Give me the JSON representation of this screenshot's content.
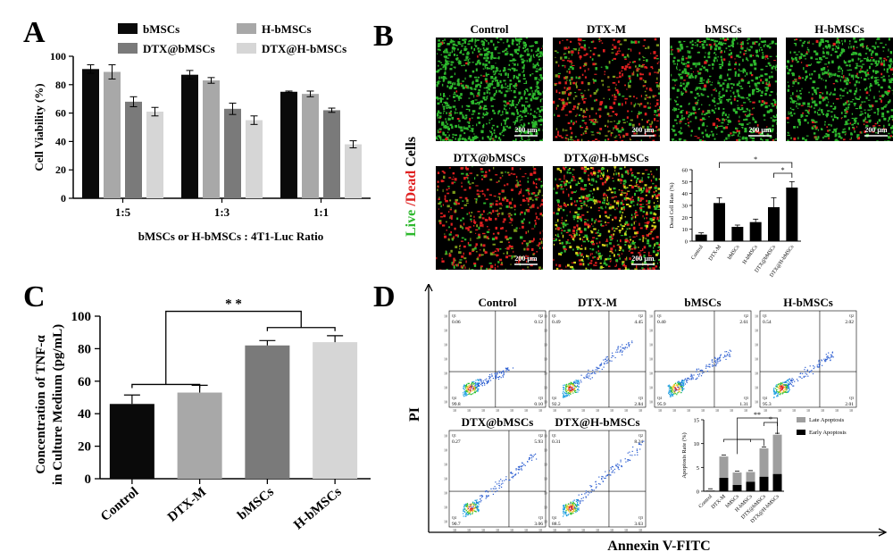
{
  "panel_letters": {
    "a": "A",
    "b": "B",
    "c": "C",
    "d": "D"
  },
  "colors": {
    "black": "#0a0a0a",
    "dgray": "#7a7a7a",
    "mgray": "#a8a8a8",
    "lgray": "#d6d6d6",
    "green": "#2db82d",
    "red": "#e02020",
    "late": "#9e9e9e",
    "early": "#000000"
  },
  "panelB": {
    "ylabel_live": "Live",
    "ylabel_slash": " /",
    "ylabel_dead": "Dead",
    "ylabel_cells": " Cells",
    "scale_bar": "200 μm",
    "images": [
      {
        "title": "Control",
        "scheme": "live"
      },
      {
        "title": "DTX-M",
        "scheme": "dead"
      },
      {
        "title": "bMSCs",
        "scheme": "mixed"
      },
      {
        "title": "H-bMSCs",
        "scheme": "mixed"
      },
      {
        "title": "DTX@bMSCs",
        "scheme": "dead"
      },
      {
        "title": "DTX@H-bMSCs",
        "scheme": "yellow"
      }
    ]
  },
  "panelD": {
    "ylabel": "PI",
    "xlabel": "Annexin V-FITC",
    "plots": [
      {
        "title": "Control",
        "q1": "0.06",
        "q2": "0.12",
        "q3": "0.10",
        "q4": "99.8",
        "spread": 0.1
      },
      {
        "title": "DTX-M",
        "q1": "0.49",
        "q2": "4.45",
        "q3": "2.84",
        "q4": "92.2",
        "spread": 0.7
      },
      {
        "title": "bMSCs",
        "q1": "0.40",
        "q2": "2.61",
        "q3": "1.31",
        "q4": "95.9",
        "spread": 0.5
      },
      {
        "title": "H-bMSCs",
        "q1": "0.54",
        "q2": "2.02",
        "q3": "2.01",
        "q4": "95.3",
        "spread": 0.45
      },
      {
        "title": "DTX@bMSCs",
        "q1": "0.27",
        "q2": "5.93",
        "q3": "3.06",
        "q4": "90.7",
        "spread": 0.85
      },
      {
        "title": "DTX@H-bMSCs",
        "q1": "0.31",
        "q2": "8.24",
        "q3": "3.63",
        "q4": "88.5",
        "spread": 1.0
      }
    ]
  },
  "chart_data": [
    {
      "id": "A",
      "type": "bar",
      "xlabel": "bMSCs or H-bMSCs : 4T1-Luc Ratio",
      "ylabel": "Cell Viability (%)",
      "ylim": [
        0,
        100
      ],
      "yticks": [
        "0",
        "20",
        "40",
        "60",
        "80",
        "100"
      ],
      "categories": [
        "1:5",
        "1:3",
        "1:1"
      ],
      "series": [
        {
          "name": "bMSCs",
          "color": "#0a0a0a",
          "values": [
            91,
            87,
            75
          ],
          "errors": [
            3,
            3,
            0.5
          ]
        },
        {
          "name": "H-bMSCs",
          "color": "#a8a8a8",
          "values": [
            89,
            83,
            73.5
          ],
          "errors": [
            5,
            2,
            2
          ]
        },
        {
          "name": "DTX@bMSCs",
          "color": "#7a7a7a",
          "values": [
            68,
            63,
            62
          ],
          "errors": [
            3.5,
            4,
            1.5
          ]
        },
        {
          "name": "DTX@H-bMSCs",
          "color": "#d6d6d6",
          "values": [
            61,
            55,
            38
          ],
          "errors": [
            3,
            3,
            2.5
          ]
        }
      ],
      "legend": "top"
    },
    {
      "id": "B-inset",
      "type": "bar",
      "ylabel": "Dead Cell Rate (%)",
      "ylim": [
        0,
        60
      ],
      "yticks": [
        "0",
        "10",
        "20",
        "30",
        "40",
        "50",
        "60"
      ],
      "categories": [
        "Control",
        "DTX-M",
        "bMSCs",
        "H-bMSCs",
        "DTX@bMSCs",
        "DTX@H-bMSCs"
      ],
      "values": [
        5.5,
        32,
        12,
        16,
        28.5,
        45
      ],
      "errors": [
        1.5,
        4.5,
        1.5,
        2.5,
        8,
        5
      ],
      "significance": [
        "*",
        "*"
      ]
    },
    {
      "id": "C",
      "type": "bar",
      "ylabel_line1": "Concentration of TNF-α",
      "ylabel_line2": "in Culture Medium (pg/mL)",
      "ylim": [
        0,
        100
      ],
      "yticks": [
        "0",
        "20",
        "40",
        "60",
        "80",
        "100"
      ],
      "categories": [
        "Control",
        "DTX-M",
        "bMSCs",
        "H-bMSCs"
      ],
      "values": [
        46,
        53,
        82,
        84
      ],
      "errors": [
        5.5,
        4.5,
        3,
        4
      ],
      "colors": [
        "#0a0a0a",
        "#a8a8a8",
        "#7a7a7a",
        "#d6d6d6"
      ],
      "significance": "* *"
    },
    {
      "id": "D-inset",
      "type": "bar",
      "ylabel": "Apoptosis Rate (%)",
      "ylim": [
        0,
        15
      ],
      "yticks": [
        "0",
        "5",
        "10",
        "15"
      ],
      "categories": [
        "Control",
        "DTX-M",
        "bMSCs",
        "H-bMSCs",
        "DTX@bMSCs",
        "DTX@H-bMSCs"
      ],
      "series": [
        {
          "name": "Early Apoptosis",
          "color": "#000000",
          "values": [
            0.1,
            2.84,
            1.31,
            2.01,
            3.06,
            3.63
          ]
        },
        {
          "name": "Late Apoptosis",
          "color": "#9e9e9e",
          "values": [
            0.12,
            4.45,
            2.61,
            2.02,
            5.93,
            8.24
          ]
        }
      ],
      "significance": [
        "**",
        "*"
      ]
    }
  ]
}
